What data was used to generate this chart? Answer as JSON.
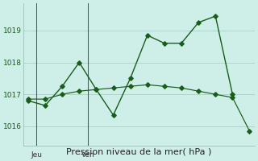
{
  "title": "Pression niveau de la mer( hPa )",
  "bg_color": "#ceeee8",
  "grid_color": "#aad0ca",
  "line_color": "#1a5c1a",
  "series1_x": [
    0,
    1,
    2,
    3,
    4,
    5,
    6,
    7,
    8,
    9,
    10,
    11,
    12
  ],
  "series1_y": [
    1016.8,
    1016.65,
    1017.25,
    1018.0,
    1017.15,
    1016.35,
    1017.5,
    1018.85,
    1018.6,
    1018.6,
    1019.25,
    1019.45,
    1017.0
  ],
  "series2_x": [
    0,
    1,
    2,
    3,
    4,
    5,
    6,
    7,
    8,
    9,
    10,
    11,
    12,
    13
  ],
  "series2_y": [
    1016.85,
    1016.85,
    1017.0,
    1017.1,
    1017.15,
    1017.2,
    1017.25,
    1017.3,
    1017.25,
    1017.2,
    1017.1,
    1017.0,
    1016.9,
    1015.85
  ],
  "ylim": [
    1015.4,
    1019.85
  ],
  "yticks": [
    1016,
    1017,
    1018,
    1019
  ],
  "jeu_x": 0.5,
  "ven_x": 3.5,
  "xlim": [
    -0.3,
    13.3
  ],
  "title_fontsize": 8,
  "tick_fontsize": 6.5
}
